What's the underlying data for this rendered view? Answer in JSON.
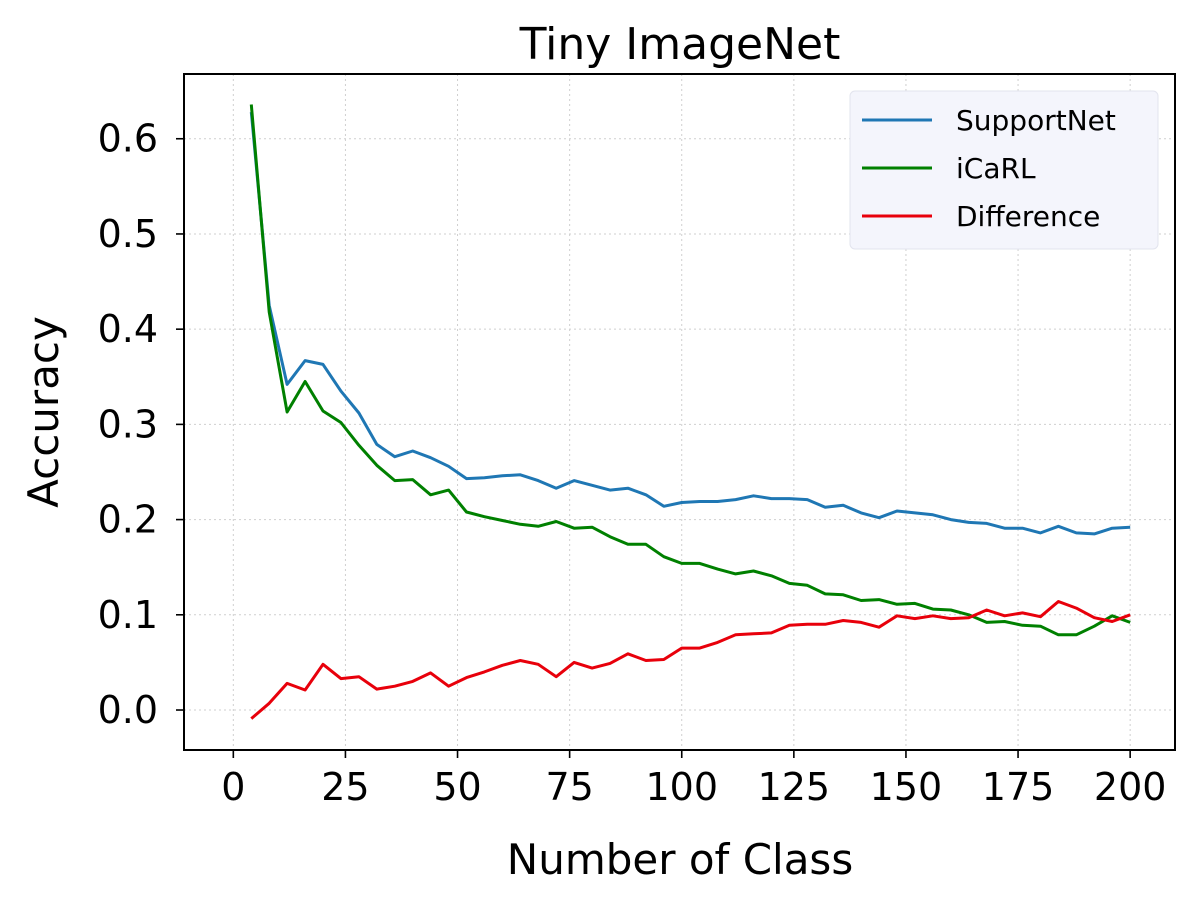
{
  "chart_data": {
    "type": "line",
    "title": "Tiny ImageNet",
    "xlabel": "Number of Class",
    "ylabel": "Accuracy",
    "xlim": [
      -11,
      210
    ],
    "ylim": [
      -0.042,
      0.668
    ],
    "xticks": [
      0,
      25,
      50,
      75,
      100,
      125,
      150,
      175,
      200
    ],
    "yticks": [
      0.0,
      0.1,
      0.2,
      0.3,
      0.4,
      0.5,
      0.6
    ],
    "ytick_labels": [
      "0.0",
      "0.1",
      "0.2",
      "0.3",
      "0.4",
      "0.5",
      "0.6"
    ],
    "grid": true,
    "legend_position": "top-right",
    "x": [
      4,
      8,
      12,
      16,
      20,
      24,
      28,
      32,
      36,
      40,
      44,
      48,
      52,
      56,
      60,
      64,
      68,
      72,
      76,
      80,
      84,
      88,
      92,
      96,
      100,
      104,
      108,
      112,
      116,
      120,
      124,
      128,
      132,
      136,
      140,
      144,
      148,
      152,
      156,
      160,
      164,
      168,
      172,
      176,
      180,
      184,
      188,
      192,
      196,
      200
    ],
    "series": [
      {
        "name": "SupportNet",
        "color": "#1f77b4",
        "values": [
          0.628,
          0.425,
          0.342,
          0.367,
          0.363,
          0.335,
          0.312,
          0.279,
          0.266,
          0.272,
          0.265,
          0.256,
          0.243,
          0.244,
          0.246,
          0.247,
          0.241,
          0.233,
          0.241,
          0.236,
          0.231,
          0.233,
          0.226,
          0.214,
          0.218,
          0.219,
          0.219,
          0.221,
          0.225,
          0.222,
          0.222,
          0.221,
          0.213,
          0.215,
          0.207,
          0.202,
          0.209,
          0.207,
          0.205,
          0.2,
          0.197,
          0.196,
          0.191,
          0.191,
          0.186,
          0.193,
          0.186,
          0.185,
          0.191,
          0.192
        ]
      },
      {
        "name": "iCaRL",
        "color": "#008000",
        "values": [
          0.636,
          0.418,
          0.313,
          0.345,
          0.314,
          0.302,
          0.278,
          0.257,
          0.241,
          0.242,
          0.226,
          0.231,
          0.208,
          0.203,
          0.199,
          0.195,
          0.193,
          0.198,
          0.191,
          0.192,
          0.182,
          0.174,
          0.174,
          0.161,
          0.154,
          0.154,
          0.148,
          0.143,
          0.146,
          0.141,
          0.133,
          0.131,
          0.122,
          0.121,
          0.115,
          0.116,
          0.111,
          0.112,
          0.106,
          0.105,
          0.1,
          0.092,
          0.093,
          0.089,
          0.088,
          0.079,
          0.079,
          0.088,
          0.099,
          0.092
        ]
      },
      {
        "name": "Difference",
        "color": "#e8000b",
        "values": [
          -0.009,
          0.007,
          0.028,
          0.021,
          0.048,
          0.033,
          0.035,
          0.022,
          0.025,
          0.03,
          0.039,
          0.025,
          0.034,
          0.04,
          0.047,
          0.052,
          0.048,
          0.035,
          0.05,
          0.044,
          0.049,
          0.059,
          0.052,
          0.053,
          0.065,
          0.065,
          0.071,
          0.079,
          0.08,
          0.081,
          0.089,
          0.09,
          0.09,
          0.094,
          0.092,
          0.087,
          0.099,
          0.096,
          0.099,
          0.096,
          0.097,
          0.105,
          0.099,
          0.102,
          0.098,
          0.114,
          0.107,
          0.097,
          0.093,
          0.1
        ]
      }
    ]
  }
}
